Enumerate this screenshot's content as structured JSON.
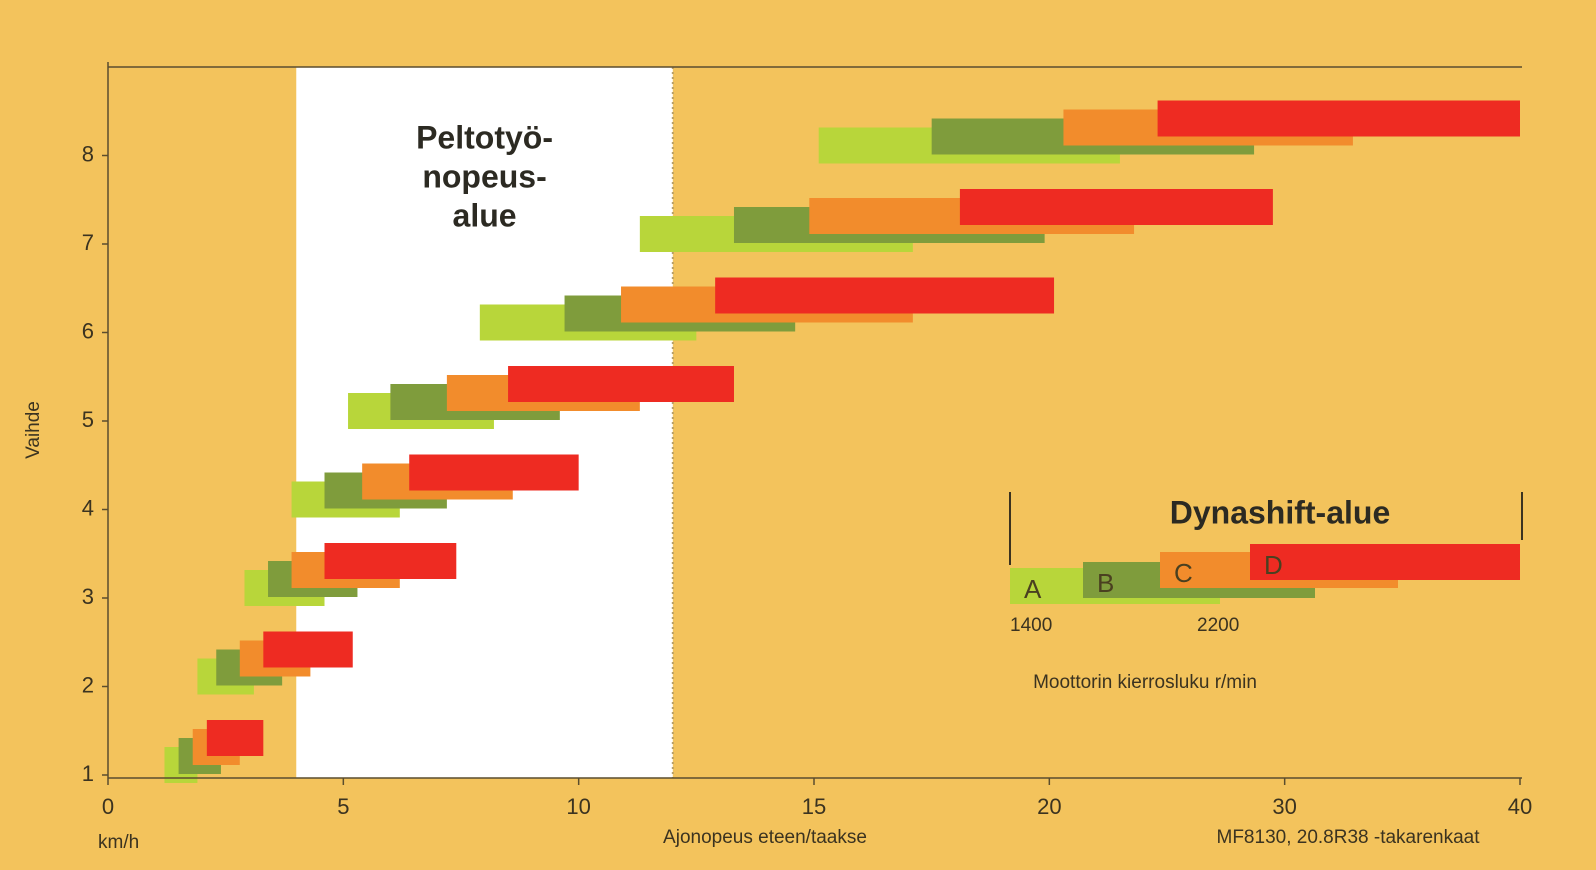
{
  "chart_data": {
    "type": "range-bar",
    "xlabel": "Ajonopeus eteen/taakse",
    "xunit": "km/h",
    "ylabel": "Vaihde",
    "note": "MF8130, 20.8R38 -takarenkaat",
    "xscale": "piecewise",
    "xlim": [
      0,
      40
    ],
    "xticks": [
      0,
      5,
      10,
      15,
      20,
      30,
      40
    ],
    "ylim": [
      1,
      9
    ],
    "yticks": [
      1,
      2,
      3,
      4,
      5,
      6,
      7,
      8
    ],
    "y": [
      1,
      2,
      3,
      4,
      5,
      6,
      7,
      8
    ],
    "field_zone": {
      "lines": [
        "Peltotyö-",
        "nopeus-",
        "alue"
      ],
      "span": [
        4,
        12
      ]
    },
    "legend": {
      "title": "Dynashift-alue",
      "rpm_ticks": [
        1400,
        2200
      ],
      "rpm_label": "Moottorin kierrosluku r/min"
    },
    "series": [
      {
        "name": "A",
        "color": "#b8d63a",
        "ranges": [
          [
            1.2,
            1.9
          ],
          [
            1.9,
            3.1
          ],
          [
            2.9,
            4.6
          ],
          [
            3.9,
            6.2
          ],
          [
            5.1,
            8.2
          ],
          [
            7.9,
            12.5
          ],
          [
            11.3,
            17.1
          ],
          [
            15.1,
            23.0
          ]
        ]
      },
      {
        "name": "B",
        "color": "#7f9c3c",
        "ranges": [
          [
            1.5,
            2.4
          ],
          [
            2.3,
            3.7
          ],
          [
            3.4,
            5.3
          ],
          [
            4.6,
            7.2
          ],
          [
            6.0,
            9.6
          ],
          [
            9.7,
            14.6
          ],
          [
            13.3,
            19.9
          ],
          [
            17.5,
            28.7
          ]
        ]
      },
      {
        "name": "C",
        "color": "#f28c2c",
        "ranges": [
          [
            1.8,
            2.8
          ],
          [
            2.8,
            4.3
          ],
          [
            3.9,
            6.2
          ],
          [
            5.4,
            8.6
          ],
          [
            7.2,
            11.3
          ],
          [
            10.9,
            17.1
          ],
          [
            14.9,
            23.6
          ],
          [
            20.6,
            32.9
          ]
        ]
      },
      {
        "name": "D",
        "color": "#ee2b22",
        "ranges": [
          [
            2.1,
            3.3
          ],
          [
            3.3,
            5.2
          ],
          [
            4.6,
            7.4
          ],
          [
            6.4,
            10.0
          ],
          [
            8.5,
            13.3
          ],
          [
            12.9,
            20.2
          ],
          [
            18.1,
            29.5
          ],
          [
            24.6,
            40
          ]
        ]
      }
    ]
  }
}
